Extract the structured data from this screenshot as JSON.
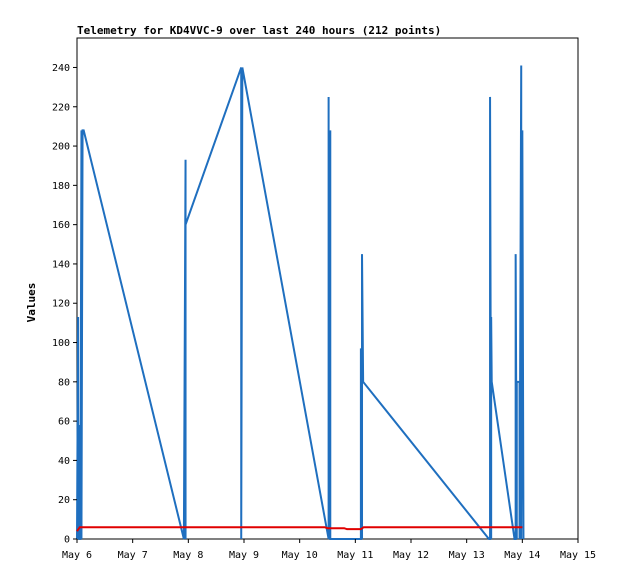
{
  "chart_data": {
    "type": "line",
    "title": "Telemetry for KD4VVC-9 over last 240 hours (212 points)",
    "xlabel": "",
    "ylabel": "Values",
    "xlim": [
      "May 6",
      "May 15"
    ],
    "ylim": [
      0,
      255
    ],
    "x_tick_labels": [
      "May 6",
      "May 7",
      "May 8",
      "May 9",
      "May 10",
      "May 11",
      "May 12",
      "May 13",
      "May 14",
      "May 15"
    ],
    "y_ticks": [
      0,
      20,
      40,
      60,
      80,
      100,
      120,
      140,
      160,
      180,
      200,
      220,
      240
    ],
    "grid": false,
    "series": [
      {
        "color": "#1f6fbf",
        "x": [
          6.0,
          6.02,
          6.02,
          6.04,
          6.04,
          6.06,
          6.08,
          6.08,
          6.1,
          6.12,
          7.92,
          7.92,
          7.95,
          7.95,
          7.95,
          8.95,
          8.95,
          8.97,
          8.97,
          10.52,
          10.52,
          10.52,
          10.55,
          10.55,
          11.1,
          11.1,
          11.12,
          11.12,
          11.14,
          13.4,
          13.42,
          13.42,
          13.44,
          13.44,
          13.45,
          13.86,
          13.88,
          13.88,
          13.9,
          13.9,
          13.95,
          13.95,
          13.98,
          13.98,
          14.0,
          14.02,
          14.02
        ],
        "y": [
          0,
          113,
          0,
          58,
          0,
          0,
          208,
          0,
          208,
          208,
          0,
          0,
          193,
          0,
          160,
          240,
          0,
          240,
          240,
          0,
          225,
          0,
          208,
          0,
          0,
          97,
          0,
          145,
          80,
          0,
          0,
          225,
          0,
          113,
          80,
          0,
          0,
          145,
          0,
          80,
          80,
          0,
          241,
          0,
          208,
          0,
          0
        ]
      },
      {
        "color": "#e00000",
        "x": [
          6.0,
          6.05,
          10.45,
          10.5,
          10.8,
          10.85,
          11.1,
          11.15,
          14.0
        ],
        "y": [
          4,
          6,
          6,
          5.5,
          5.5,
          5,
          5,
          6,
          6
        ]
      }
    ]
  }
}
